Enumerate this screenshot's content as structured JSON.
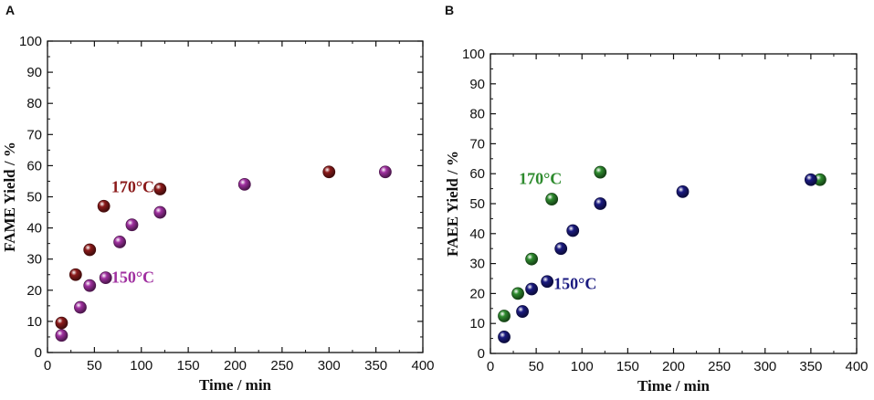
{
  "chart_data": [
    {
      "type": "scatter",
      "panel_label": "A",
      "xlabel": "Time / min",
      "ylabel": "FAME Yield / %",
      "xlim": [
        0,
        400
      ],
      "ylim": [
        0,
        100
      ],
      "xticks": [
        "0",
        "50",
        "100",
        "150",
        "200",
        "250",
        "300",
        "350",
        "400"
      ],
      "yticks": [
        "0",
        "10",
        "20",
        "30",
        "40",
        "50",
        "60",
        "70",
        "80",
        "90",
        "100"
      ],
      "series": [
        {
          "name": "170°C",
          "color": "#8b1a1a",
          "points": [
            [
              15,
              9.5
            ],
            [
              30,
              25
            ],
            [
              45,
              33
            ],
            [
              60,
              47
            ],
            [
              120,
              52.5
            ],
            [
              300,
              58
            ]
          ]
        },
        {
          "name": "150°C",
          "color": "#a030a0",
          "points": [
            [
              15,
              5.5
            ],
            [
              35,
              14.5
            ],
            [
              45,
              21.5
            ],
            [
              62,
              24
            ],
            [
              77,
              35.5
            ],
            [
              90,
              41
            ],
            [
              120,
              45
            ],
            [
              210,
              54
            ],
            [
              360,
              58
            ]
          ]
        }
      ],
      "annotations": [
        {
          "text": "170°C",
          "x": 68,
          "y": 51.5,
          "color": "#8b1a1a"
        },
        {
          "text": "150°C",
          "x": 68,
          "y": 22.5,
          "color": "#a030a0"
        }
      ]
    },
    {
      "type": "scatter",
      "panel_label": "B",
      "xlabel": "Time / min",
      "ylabel": "FAEE Yield / %",
      "xlim": [
        0,
        400
      ],
      "ylim": [
        0,
        100
      ],
      "xticks": [
        "0",
        "50",
        "100",
        "150",
        "200",
        "250",
        "300",
        "350",
        "400"
      ],
      "yticks": [
        "0",
        "10",
        "20",
        "30",
        "40",
        "50",
        "60",
        "70",
        "80",
        "90",
        "100"
      ],
      "series": [
        {
          "name": "170°C",
          "color": "#2e8b2e",
          "points": [
            [
              15,
              12.5
            ],
            [
              30,
              20
            ],
            [
              45,
              31.5
            ],
            [
              67,
              51.5
            ],
            [
              120,
              60.5
            ],
            [
              360,
              58
            ]
          ]
        },
        {
          "name": "150°C",
          "color": "#1a1a80",
          "points": [
            [
              15,
              5.5
            ],
            [
              35,
              14
            ],
            [
              45,
              21.5
            ],
            [
              62,
              24
            ],
            [
              77,
              35
            ],
            [
              90,
              41
            ],
            [
              120,
              50
            ],
            [
              210,
              54
            ],
            [
              350,
              58
            ]
          ]
        }
      ],
      "annotations": [
        {
          "text": "170°C",
          "x": 31,
          "y": 56.5,
          "color": "#2e8b2e"
        },
        {
          "text": "150°C",
          "x": 69,
          "y": 21.5,
          "color": "#1a1a80"
        }
      ]
    }
  ]
}
